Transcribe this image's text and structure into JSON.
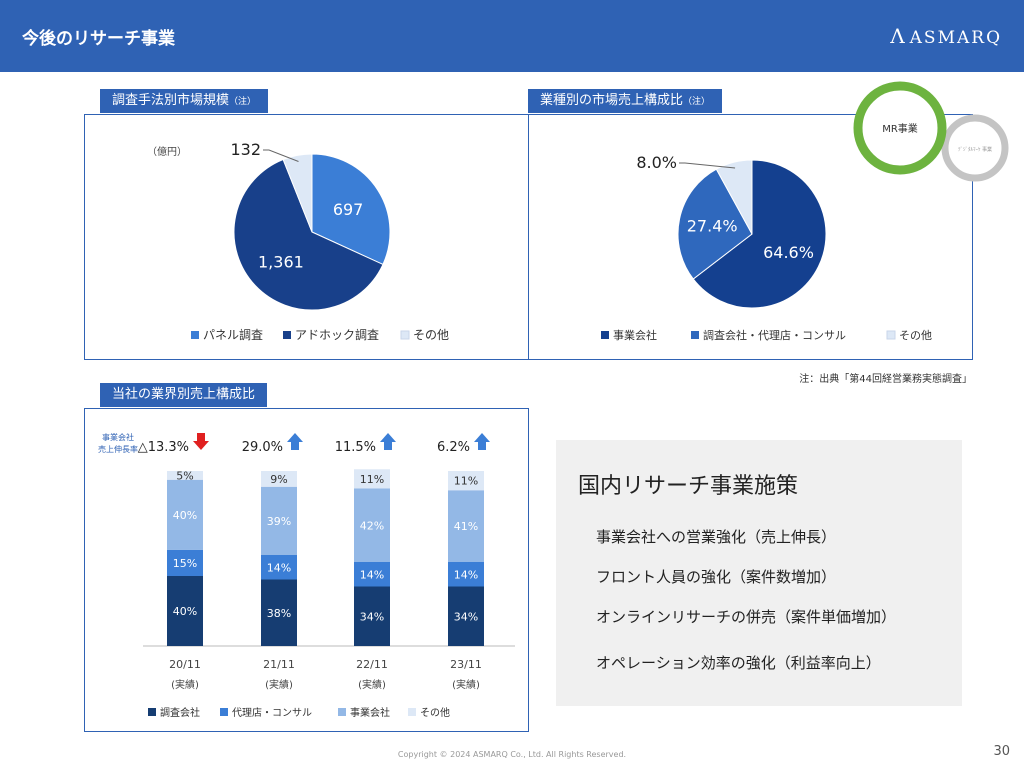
{
  "header": {
    "title": "今後のリサーチ事業",
    "logo_text": "ASMARQ",
    "logo_mark": "Λ"
  },
  "chart1": {
    "tab_label": "調査手法別市場規模",
    "tab_note": "（注）",
    "unit": "（億円）"
  },
  "chart2": {
    "tab_label": "業種別の市場売上構成比",
    "tab_note": "（注）"
  },
  "chart3": {
    "tab_label": "当社の業界別売上構成比",
    "growth_label_line1": "事業会社",
    "growth_label_line2": "売上伸長率"
  },
  "badge": {
    "primary": "MR事業",
    "secondary": "ﾃﾞｼﾞﾀﾙﾏｰｹ 事業"
  },
  "note": "注：出典「第44回経営業務実態調査」",
  "measures": {
    "title": "国内リサーチ事業施策",
    "items": [
      "事業会社への営業強化（売上伸長）",
      "フロント人員の強化（案件数増加）",
      "オンラインリサーチの併売（案件単価増加）",
      "オペレーション効率の強化（利益率向上）"
    ]
  },
  "footer": {
    "copyright": "Copyright © 2024 ASMARQ Co., Ltd. All Rights Reserved.",
    "page": "30"
  },
  "chart_data": [
    {
      "type": "pie",
      "title": "調査手法別市場規模",
      "labels": [
        "パネル調査",
        "アドホック調査",
        "その他"
      ],
      "values": [
        697,
        1361,
        132
      ],
      "value_labels": [
        "697",
        "1,361",
        "132"
      ],
      "colors": [
        "#3b7ed6",
        "#18408a",
        "#dde8f6"
      ],
      "legend": "bottom"
    },
    {
      "type": "pie",
      "title": "業種別の市場売上構成比",
      "labels": [
        "事業会社",
        "調査会社・代理店・コンサル",
        "その他"
      ],
      "values": [
        64.6,
        27.4,
        8.0
      ],
      "value_labels": [
        "64.6%",
        "27.4%",
        "8.0%"
      ],
      "colors": [
        "#14408f",
        "#2f68bd",
        "#dde8f6"
      ],
      "legend": "bottom"
    },
    {
      "type": "bar",
      "stacked": true,
      "title": "当社の業界別売上構成比",
      "categories": [
        "20/11",
        "21/11",
        "22/11",
        "23/11"
      ],
      "category_notes": [
        "(実績)",
        "(実績)",
        "(実績)",
        "(実績)"
      ],
      "series": [
        {
          "name": "調査会社",
          "values": [
            40,
            38,
            34,
            34
          ],
          "labels": [
            "40%",
            "38%",
            "34%",
            "34%"
          ],
          "color": "#163d72"
        },
        {
          "name": "代理店・コンサル",
          "values": [
            15,
            14,
            14,
            14
          ],
          "labels": [
            "15%",
            "14%",
            "14%",
            "14%"
          ],
          "color": "#3b7ed6"
        },
        {
          "name": "事業会社",
          "values": [
            40,
            39,
            42,
            41
          ],
          "labels": [
            "40%",
            "39%",
            "42%",
            "41%"
          ],
          "color": "#93b8e6"
        },
        {
          "name": "その他",
          "values": [
            5,
            9,
            11,
            11
          ],
          "labels": [
            "5%",
            "9%",
            "11%",
            "11%"
          ],
          "color": "#dde8f6"
        }
      ],
      "growth": [
        {
          "label": "△13.3%",
          "direction": "down",
          "color": "#e02020"
        },
        {
          "label": "29.0%",
          "direction": "up",
          "color": "#3b7ed6"
        },
        {
          "label": "11.5%",
          "direction": "up",
          "color": "#3b7ed6"
        },
        {
          "label": "6.2%",
          "direction": "up",
          "color": "#3b7ed6"
        }
      ],
      "ylim": [
        0,
        100
      ],
      "legend": "bottom"
    }
  ]
}
